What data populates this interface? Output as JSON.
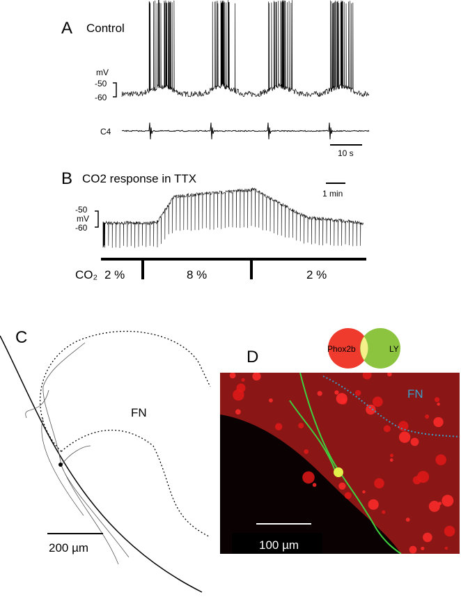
{
  "panel_a": {
    "label": "A",
    "title": "Control",
    "voltage_unit": "mV",
    "voltage_ticks": [
      "-50",
      "-60"
    ],
    "trace_label": "C4",
    "time_scale": "10 s"
  },
  "panel_b": {
    "label": "B",
    "title": "CO2 response in TTX",
    "time_scale": "1 min",
    "voltage_ticks": [
      "-50",
      "-60"
    ],
    "voltage_unit": "mV",
    "co2_label": "CO₂",
    "co2_levels": [
      "2 %",
      "8 %",
      "2 %"
    ]
  },
  "panel_c": {
    "label": "C",
    "region": "FN",
    "scale": "200 µm"
  },
  "panel_d": {
    "label": "D",
    "legend": [
      "Phox2b",
      "LY"
    ],
    "region": "FN",
    "scale": "100 µm"
  }
}
